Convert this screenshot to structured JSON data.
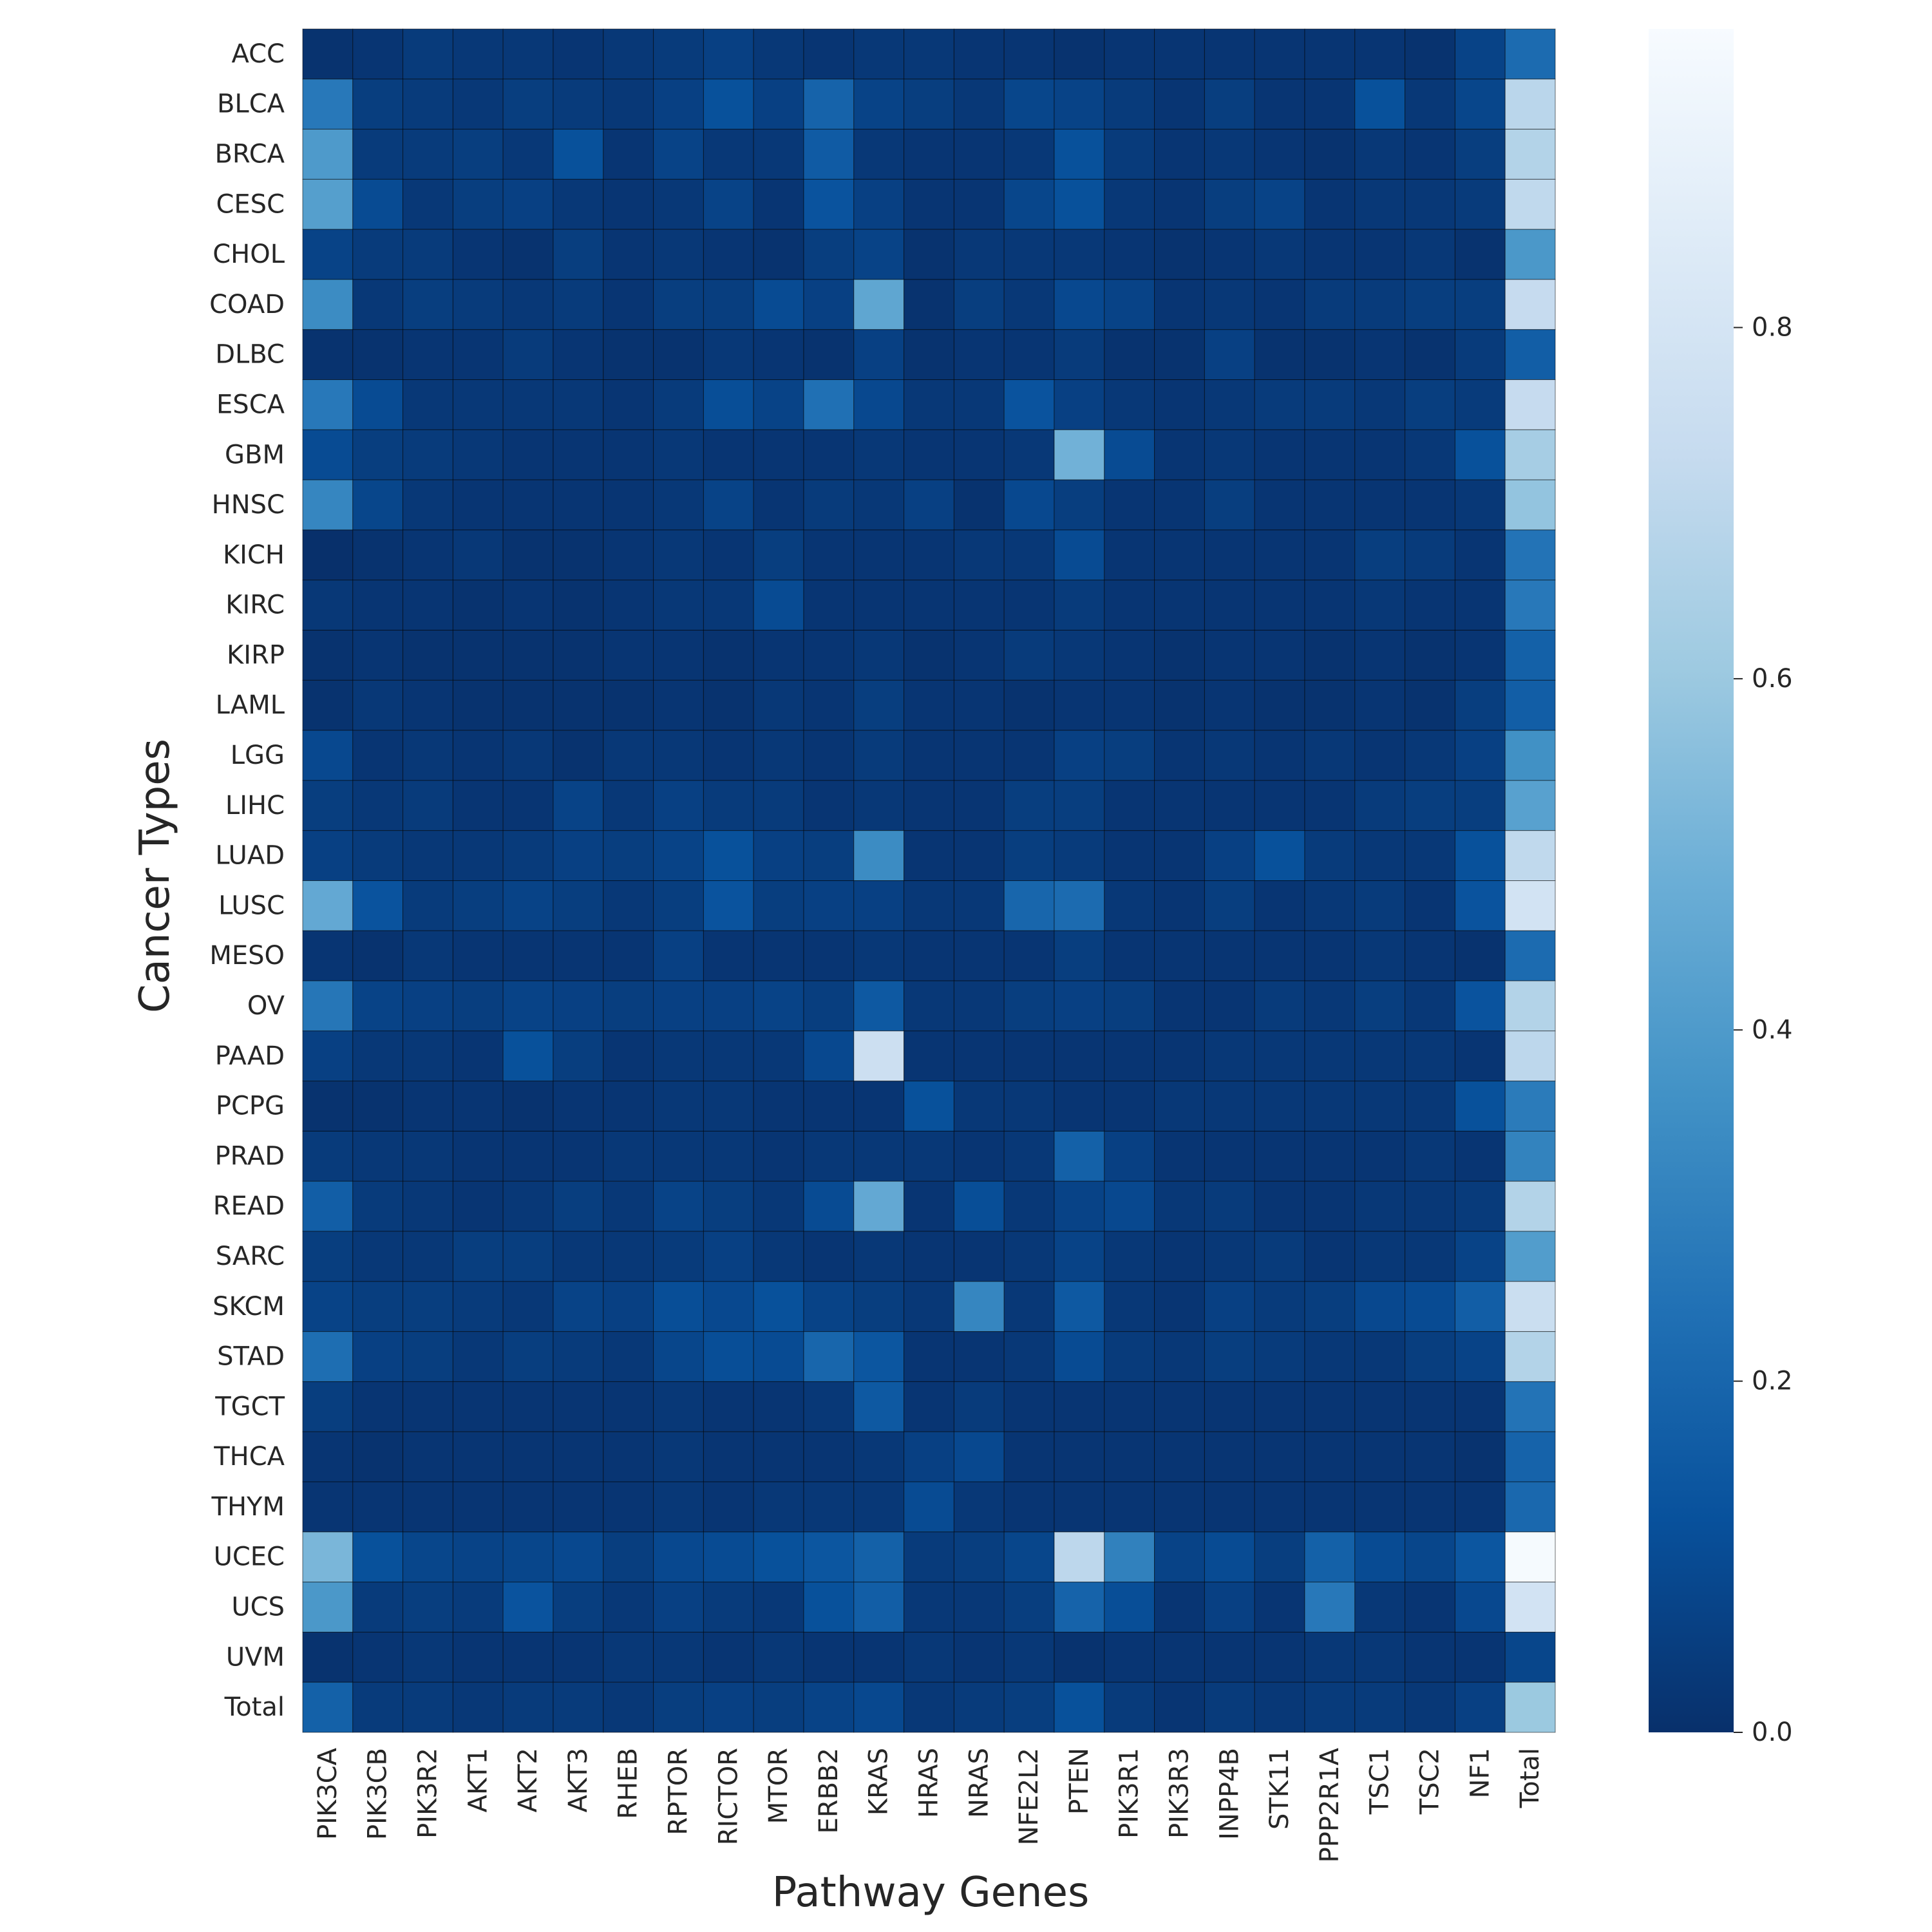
{
  "chart_data": {
    "type": "heatmap",
    "title": "",
    "xlabel": "Pathway Genes",
    "ylabel": "Cancer Types",
    "x_categories": [
      "PIK3CA",
      "PIK3CB",
      "PIK3R2",
      "AKT1",
      "AKT2",
      "AKT3",
      "RHEB",
      "RPTOR",
      "RICTOR",
      "MTOR",
      "ERBB2",
      "KRAS",
      "HRAS",
      "NRAS",
      "NFE2L2",
      "PTEN",
      "PIK3R1",
      "PIK3R3",
      "INPP4B",
      "STK11",
      "PPP2R1A",
      "TSC1",
      "TSC2",
      "NF1",
      "Total"
    ],
    "y_categories": [
      "ACC",
      "BLCA",
      "BRCA",
      "CESC",
      "CHOL",
      "COAD",
      "DLBC",
      "ESCA",
      "GBM",
      "HNSC",
      "KICH",
      "KIRC",
      "KIRP",
      "LAML",
      "LGG",
      "LIHC",
      "LUAD",
      "LUSC",
      "MESO",
      "OV",
      "PAAD",
      "PCPG",
      "PRAD",
      "READ",
      "SARC",
      "SKCM",
      "STAD",
      "TGCT",
      "THCA",
      "THYM",
      "UCEC",
      "UCS",
      "UVM",
      "Total"
    ],
    "values": [
      [
        0.01,
        0.02,
        0.04,
        0.03,
        0.03,
        0.02,
        0.03,
        0.04,
        0.06,
        0.03,
        0.02,
        0.03,
        0.03,
        0.02,
        0.02,
        0.01,
        0.02,
        0.02,
        0.02,
        0.02,
        0.02,
        0.02,
        0.01,
        0.07,
        0.22
      ],
      [
        0.27,
        0.05,
        0.04,
        0.03,
        0.05,
        0.04,
        0.03,
        0.06,
        0.12,
        0.06,
        0.19,
        0.07,
        0.05,
        0.03,
        0.08,
        0.07,
        0.04,
        0.02,
        0.05,
        0.02,
        0.02,
        0.12,
        0.03,
        0.08,
        0.69
      ],
      [
        0.4,
        0.04,
        0.04,
        0.05,
        0.03,
        0.12,
        0.02,
        0.07,
        0.03,
        0.03,
        0.16,
        0.03,
        0.02,
        0.02,
        0.03,
        0.12,
        0.04,
        0.02,
        0.03,
        0.02,
        0.01,
        0.03,
        0.02,
        0.05,
        0.67
      ],
      [
        0.42,
        0.1,
        0.03,
        0.05,
        0.06,
        0.03,
        0.02,
        0.03,
        0.07,
        0.02,
        0.13,
        0.06,
        0.02,
        0.02,
        0.08,
        0.12,
        0.03,
        0.02,
        0.05,
        0.07,
        0.02,
        0.03,
        0.03,
        0.04,
        0.71
      ],
      [
        0.07,
        0.04,
        0.04,
        0.02,
        0.01,
        0.05,
        0.02,
        0.03,
        0.02,
        0.01,
        0.05,
        0.07,
        0.01,
        0.03,
        0.03,
        0.03,
        0.02,
        0.01,
        0.02,
        0.03,
        0.02,
        0.02,
        0.03,
        0.01,
        0.39
      ],
      [
        0.34,
        0.03,
        0.05,
        0.04,
        0.03,
        0.04,
        0.02,
        0.05,
        0.05,
        0.1,
        0.06,
        0.45,
        0.01,
        0.05,
        0.03,
        0.09,
        0.07,
        0.02,
        0.03,
        0.02,
        0.04,
        0.04,
        0.05,
        0.05,
        0.73
      ],
      [
        0.01,
        0.01,
        0.02,
        0.02,
        0.04,
        0.02,
        0.01,
        0.01,
        0.03,
        0.02,
        0.01,
        0.06,
        0.01,
        0.02,
        0.02,
        0.04,
        0.01,
        0.01,
        0.06,
        0.01,
        0.01,
        0.02,
        0.01,
        0.04,
        0.17
      ],
      [
        0.27,
        0.1,
        0.03,
        0.03,
        0.03,
        0.03,
        0.02,
        0.04,
        0.11,
        0.07,
        0.24,
        0.09,
        0.03,
        0.03,
        0.13,
        0.06,
        0.03,
        0.02,
        0.03,
        0.04,
        0.04,
        0.03,
        0.05,
        0.04,
        0.73
      ],
      [
        0.1,
        0.05,
        0.04,
        0.03,
        0.02,
        0.02,
        0.02,
        0.03,
        0.02,
        0.02,
        0.02,
        0.03,
        0.02,
        0.02,
        0.03,
        0.5,
        0.1,
        0.02,
        0.03,
        0.02,
        0.02,
        0.02,
        0.03,
        0.12,
        0.63
      ],
      [
        0.32,
        0.08,
        0.03,
        0.02,
        0.02,
        0.02,
        0.02,
        0.03,
        0.07,
        0.02,
        0.04,
        0.03,
        0.06,
        0.01,
        0.09,
        0.05,
        0.02,
        0.02,
        0.05,
        0.02,
        0.02,
        0.02,
        0.02,
        0.03,
        0.58
      ],
      [
        0.0,
        0.01,
        0.02,
        0.03,
        0.01,
        0.01,
        0.02,
        0.03,
        0.02,
        0.05,
        0.02,
        0.02,
        0.02,
        0.03,
        0.03,
        0.1,
        0.02,
        0.02,
        0.02,
        0.02,
        0.02,
        0.05,
        0.04,
        0.02,
        0.25
      ],
      [
        0.03,
        0.02,
        0.02,
        0.01,
        0.02,
        0.01,
        0.02,
        0.03,
        0.03,
        0.1,
        0.02,
        0.02,
        0.02,
        0.02,
        0.02,
        0.04,
        0.02,
        0.02,
        0.02,
        0.02,
        0.02,
        0.03,
        0.02,
        0.02,
        0.27
      ],
      [
        0.01,
        0.02,
        0.01,
        0.01,
        0.01,
        0.01,
        0.02,
        0.02,
        0.01,
        0.02,
        0.02,
        0.03,
        0.01,
        0.02,
        0.04,
        0.03,
        0.02,
        0.01,
        0.02,
        0.02,
        0.01,
        0.02,
        0.01,
        0.02,
        0.18
      ],
      [
        0.01,
        0.03,
        0.02,
        0.01,
        0.01,
        0.01,
        0.01,
        0.02,
        0.01,
        0.03,
        0.02,
        0.05,
        0.02,
        0.02,
        0.01,
        0.02,
        0.02,
        0.01,
        0.02,
        0.01,
        0.01,
        0.02,
        0.01,
        0.05,
        0.17
      ],
      [
        0.09,
        0.02,
        0.03,
        0.02,
        0.03,
        0.01,
        0.03,
        0.03,
        0.02,
        0.03,
        0.02,
        0.04,
        0.02,
        0.02,
        0.02,
        0.06,
        0.05,
        0.02,
        0.03,
        0.02,
        0.03,
        0.02,
        0.03,
        0.06,
        0.36
      ],
      [
        0.05,
        0.03,
        0.04,
        0.02,
        0.02,
        0.07,
        0.03,
        0.06,
        0.04,
        0.04,
        0.02,
        0.03,
        0.02,
        0.02,
        0.05,
        0.05,
        0.02,
        0.02,
        0.02,
        0.02,
        0.02,
        0.04,
        0.05,
        0.05,
        0.43
      ],
      [
        0.06,
        0.04,
        0.03,
        0.03,
        0.04,
        0.06,
        0.05,
        0.07,
        0.12,
        0.06,
        0.05,
        0.34,
        0.02,
        0.02,
        0.05,
        0.04,
        0.02,
        0.02,
        0.06,
        0.12,
        0.04,
        0.03,
        0.03,
        0.12,
        0.71
      ],
      [
        0.46,
        0.13,
        0.04,
        0.05,
        0.07,
        0.05,
        0.03,
        0.05,
        0.13,
        0.05,
        0.06,
        0.06,
        0.03,
        0.03,
        0.2,
        0.22,
        0.03,
        0.02,
        0.05,
        0.02,
        0.03,
        0.04,
        0.02,
        0.13,
        0.79
      ],
      [
        0.02,
        0.01,
        0.03,
        0.02,
        0.02,
        0.02,
        0.02,
        0.06,
        0.02,
        0.02,
        0.02,
        0.03,
        0.02,
        0.02,
        0.02,
        0.05,
        0.02,
        0.02,
        0.02,
        0.02,
        0.02,
        0.03,
        0.02,
        0.01,
        0.22
      ],
      [
        0.26,
        0.07,
        0.06,
        0.05,
        0.07,
        0.06,
        0.05,
        0.06,
        0.06,
        0.07,
        0.05,
        0.15,
        0.03,
        0.03,
        0.05,
        0.06,
        0.05,
        0.02,
        0.02,
        0.04,
        0.03,
        0.05,
        0.03,
        0.13,
        0.67
      ],
      [
        0.06,
        0.03,
        0.03,
        0.02,
        0.12,
        0.05,
        0.02,
        0.03,
        0.03,
        0.03,
        0.09,
        0.76,
        0.02,
        0.02,
        0.02,
        0.02,
        0.02,
        0.02,
        0.03,
        0.03,
        0.03,
        0.03,
        0.03,
        0.02,
        0.7
      ],
      [
        0.01,
        0.01,
        0.02,
        0.02,
        0.01,
        0.02,
        0.02,
        0.03,
        0.03,
        0.02,
        0.02,
        0.02,
        0.12,
        0.03,
        0.03,
        0.02,
        0.02,
        0.03,
        0.03,
        0.03,
        0.03,
        0.03,
        0.03,
        0.12,
        0.28
      ],
      [
        0.04,
        0.03,
        0.03,
        0.02,
        0.02,
        0.02,
        0.03,
        0.03,
        0.03,
        0.02,
        0.03,
        0.03,
        0.03,
        0.02,
        0.03,
        0.18,
        0.06,
        0.02,
        0.02,
        0.02,
        0.02,
        0.02,
        0.03,
        0.02,
        0.31
      ],
      [
        0.17,
        0.04,
        0.03,
        0.02,
        0.03,
        0.05,
        0.03,
        0.07,
        0.05,
        0.03,
        0.1,
        0.46,
        0.02,
        0.11,
        0.03,
        0.07,
        0.09,
        0.03,
        0.04,
        0.02,
        0.02,
        0.03,
        0.03,
        0.04,
        0.67
      ],
      [
        0.05,
        0.03,
        0.03,
        0.05,
        0.05,
        0.03,
        0.03,
        0.04,
        0.06,
        0.03,
        0.02,
        0.03,
        0.02,
        0.02,
        0.03,
        0.07,
        0.03,
        0.02,
        0.03,
        0.04,
        0.02,
        0.03,
        0.03,
        0.07,
        0.41
      ],
      [
        0.07,
        0.05,
        0.05,
        0.04,
        0.03,
        0.07,
        0.06,
        0.11,
        0.09,
        0.12,
        0.07,
        0.05,
        0.03,
        0.32,
        0.03,
        0.15,
        0.03,
        0.02,
        0.06,
        0.04,
        0.05,
        0.09,
        0.1,
        0.17,
        0.75
      ],
      [
        0.23,
        0.06,
        0.05,
        0.03,
        0.05,
        0.04,
        0.03,
        0.08,
        0.11,
        0.1,
        0.2,
        0.14,
        0.02,
        0.02,
        0.03,
        0.1,
        0.04,
        0.03,
        0.05,
        0.04,
        0.03,
        0.03,
        0.05,
        0.07,
        0.67
      ],
      [
        0.05,
        0.02,
        0.02,
        0.02,
        0.02,
        0.02,
        0.02,
        0.03,
        0.02,
        0.02,
        0.03,
        0.15,
        0.02,
        0.04,
        0.02,
        0.02,
        0.02,
        0.02,
        0.02,
        0.02,
        0.02,
        0.02,
        0.02,
        0.02,
        0.25
      ],
      [
        0.02,
        0.01,
        0.02,
        0.02,
        0.02,
        0.02,
        0.02,
        0.03,
        0.02,
        0.02,
        0.02,
        0.03,
        0.06,
        0.09,
        0.02,
        0.02,
        0.02,
        0.02,
        0.02,
        0.02,
        0.02,
        0.02,
        0.02,
        0.01,
        0.19
      ],
      [
        0.02,
        0.02,
        0.02,
        0.02,
        0.02,
        0.02,
        0.02,
        0.03,
        0.02,
        0.03,
        0.03,
        0.03,
        0.1,
        0.03,
        0.02,
        0.02,
        0.02,
        0.02,
        0.02,
        0.02,
        0.02,
        0.02,
        0.02,
        0.02,
        0.21
      ],
      [
        0.52,
        0.12,
        0.08,
        0.07,
        0.08,
        0.09,
        0.05,
        0.09,
        0.1,
        0.12,
        0.14,
        0.18,
        0.04,
        0.05,
        0.08,
        0.7,
        0.3,
        0.07,
        0.1,
        0.05,
        0.18,
        0.1,
        0.08,
        0.14,
        0.96
      ],
      [
        0.39,
        0.04,
        0.05,
        0.04,
        0.13,
        0.05,
        0.03,
        0.06,
        0.04,
        0.03,
        0.12,
        0.17,
        0.03,
        0.03,
        0.05,
        0.19,
        0.11,
        0.02,
        0.06,
        0.02,
        0.27,
        0.03,
        0.02,
        0.09,
        0.79
      ],
      [
        0.01,
        0.02,
        0.03,
        0.02,
        0.02,
        0.02,
        0.03,
        0.03,
        0.02,
        0.03,
        0.02,
        0.02,
        0.03,
        0.02,
        0.03,
        0.01,
        0.02,
        0.02,
        0.02,
        0.02,
        0.03,
        0.03,
        0.02,
        0.02,
        0.08
      ],
      [
        0.18,
        0.04,
        0.04,
        0.03,
        0.04,
        0.04,
        0.03,
        0.05,
        0.06,
        0.05,
        0.07,
        0.09,
        0.03,
        0.04,
        0.05,
        0.12,
        0.04,
        0.02,
        0.04,
        0.03,
        0.04,
        0.04,
        0.03,
        0.06,
        0.6
      ]
    ],
    "colorbar": {
      "min": 0.0,
      "max": 0.97,
      "ticks": [
        "0.0",
        "0.2",
        "0.4",
        "0.6",
        "0.8"
      ],
      "colormap": "Blues_r"
    },
    "colors": {
      "low": "#08306b",
      "high": "#f7fbff",
      "grid": "#000000",
      "text": "#262626"
    }
  }
}
